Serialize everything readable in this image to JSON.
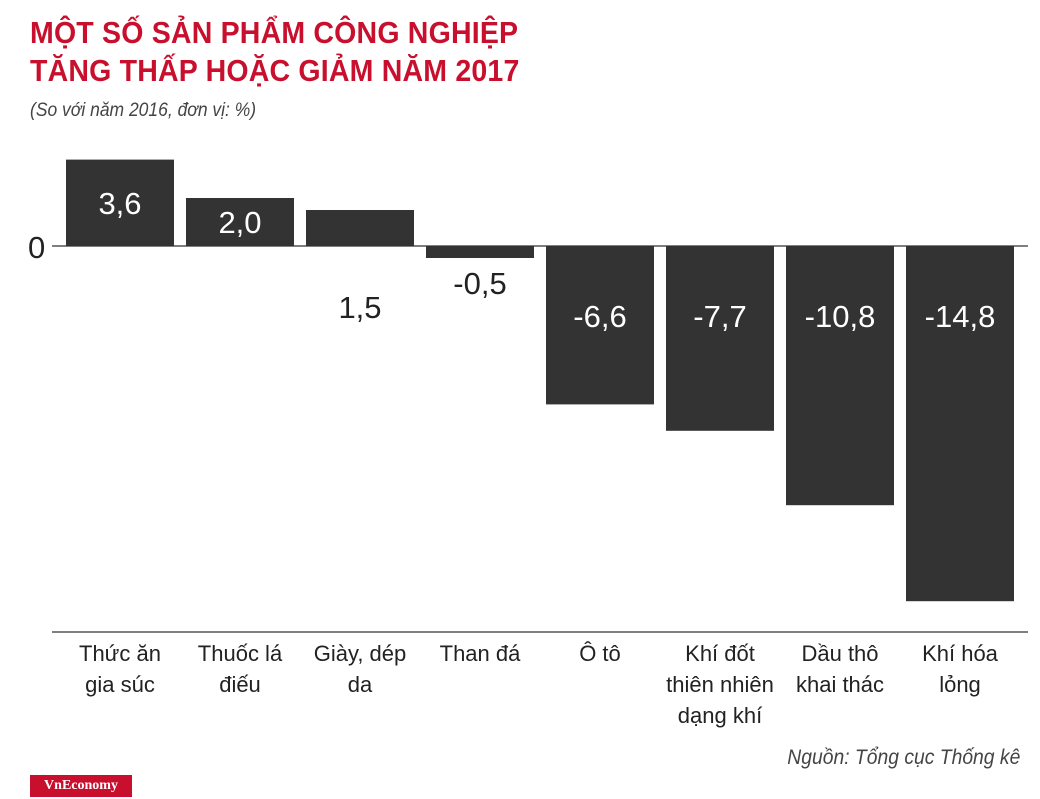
{
  "title_lines": [
    "MỘT SỐ SẢN PHẨM CÔNG NGHIỆP",
    "TĂNG THẤP HOẶC GIẢM NĂM 2017"
  ],
  "subtitle": "(So với năm 2016, đơn vị: %)",
  "source": "Nguồn: Tổng cục Thống kê",
  "brand": "VnEconomy",
  "colors": {
    "title": "#c8102e",
    "bar": "#333333",
    "bar_label": "#ffffff",
    "text": "#222222",
    "brand_bg": "#c8102e"
  },
  "chart_data": {
    "type": "bar",
    "categories": [
      [
        "Thức ăn",
        "gia súc"
      ],
      [
        "Thuốc lá",
        "điếu"
      ],
      [
        "Giày, dép",
        "da"
      ],
      [
        "Than đá"
      ],
      [
        "Ô tô"
      ],
      [
        "Khí đốt",
        "thiên nhiên",
        "dạng khí"
      ],
      [
        "Dầu thô",
        "khai thác"
      ],
      [
        "Khí hóa",
        "lỏng"
      ]
    ],
    "values": [
      3.6,
      2.0,
      1.5,
      -0.5,
      -6.6,
      -7.7,
      -10.8,
      -14.8
    ],
    "value_labels": [
      "3,6",
      "2,0",
      "1,5",
      "-0,5",
      "-6,6",
      "-7,7",
      "-10,8",
      "-14,8"
    ],
    "zero_label": "0",
    "ylim": [
      -16,
      3.6
    ],
    "grid": false
  }
}
